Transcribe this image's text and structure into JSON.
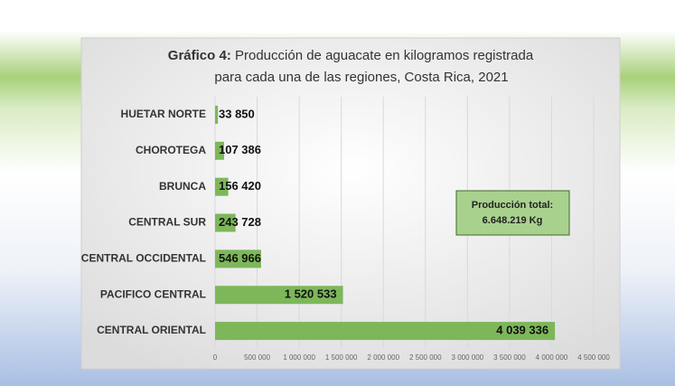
{
  "chart_data": {
    "type": "barh",
    "title_label": "Gráfico 4:",
    "title": [
      "Producción de aguacate en kilogramos registrada",
      "para cada una de las regiones, Costa Rica, 2021"
    ],
    "categories": [
      "HUETAR NORTE",
      "CHOROTEGA",
      "BRUNCA",
      "CENTRAL SUR",
      "CENTRAL OCCIDENTAL",
      "PACIFICO CENTRAL",
      "CENTRAL ORIENTAL"
    ],
    "values": [
      33850,
      107386,
      156420,
      243728,
      546966,
      1520533,
      4039336
    ],
    "value_labels": [
      "33 850",
      "107 386",
      "156 420",
      "243 728",
      "546 966",
      "1 520 533",
      "4 039 336"
    ],
    "color": "#7db75a",
    "xlim": [
      0,
      4500000
    ],
    "xticks": [
      0,
      {
        "value": 500000,
        "label": "500 000"
      },
      {
        "value": 1000000,
        "label": "1 000 000"
      },
      {
        "value": 1500000,
        "label": "1 500 000"
      },
      {
        "value": 2000000,
        "label": "2 000 000"
      },
      {
        "value": 2500000,
        "label": "2 500 000"
      },
      {
        "value": 3000000,
        "label": "3 000 000"
      },
      {
        "value": 3500000,
        "label": "3 500 000"
      },
      {
        "value": 4000000,
        "label": "4 000 000"
      },
      {
        "value": 4500000,
        "label": "4 500 000"
      }
    ],
    "grid": true,
    "annotation": [
      "Producción total:",
      "6.648.219 Kg"
    ]
  }
}
